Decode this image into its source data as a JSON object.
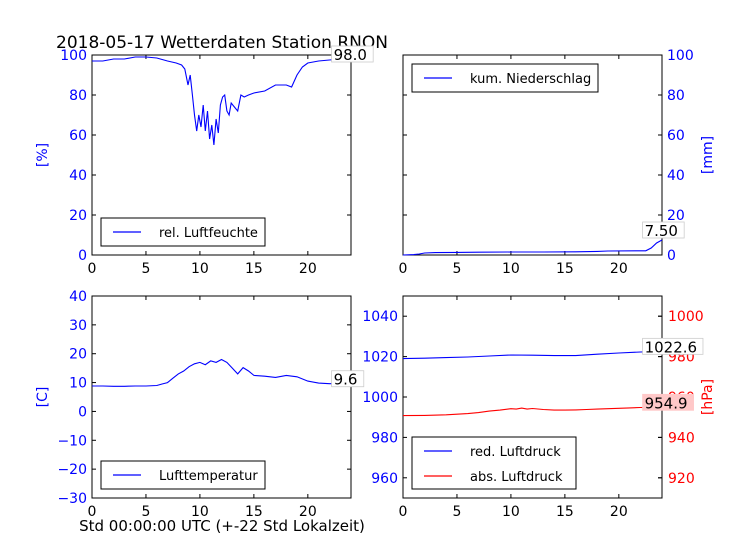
{
  "title": "2018-05-17 Wetterdaten Station RNON",
  "xlabel": "Std 00:00:00 UTC (+-22 Std Lokalzeit)",
  "colors": {
    "blue": "#0000ff",
    "red": "#ff0000",
    "frame": "#000000"
  },
  "chart_data": [
    {
      "type": "line",
      "xlim": [
        0,
        24
      ],
      "ylim": [
        0,
        100
      ],
      "ylabel": "[%]",
      "axis_side": "left",
      "xticks": [
        "0",
        "5",
        "10",
        "15",
        "20"
      ],
      "yticks": [
        "0",
        "20",
        "40",
        "60",
        "80",
        "100"
      ],
      "legend": "bottom-left",
      "series": [
        {
          "name": "rel. Luftfeuchte",
          "color": "#0000ff",
          "x": [
            0,
            1,
            2,
            3,
            4,
            5,
            6,
            7,
            7.8,
            8.3,
            8.6,
            8.9,
            9.1,
            9.3,
            9.5,
            9.7,
            9.9,
            10.1,
            10.3,
            10.5,
            10.7,
            10.9,
            11.1,
            11.3,
            11.5,
            11.7,
            11.9,
            12.1,
            12.3,
            12.5,
            12.7,
            12.9,
            13.2,
            13.5,
            13.8,
            14.1,
            14.5,
            15,
            16,
            17,
            18,
            18.5,
            19,
            19.5,
            20,
            21,
            22,
            23,
            24
          ],
          "y": [
            97,
            97,
            98,
            98,
            99,
            99,
            98.5,
            97,
            96,
            95,
            93,
            85,
            90,
            80,
            70,
            62,
            70,
            64,
            75,
            62,
            72,
            58,
            65,
            55,
            68,
            61,
            75,
            79,
            80,
            72,
            70,
            76,
            74,
            72,
            80,
            79,
            80,
            81,
            82,
            85,
            85,
            84,
            90,
            94,
            96,
            97,
            97.5,
            98,
            98
          ]
        }
      ],
      "annotation": {
        "text": "98.0",
        "x": 22.2,
        "y": 98
      }
    },
    {
      "type": "line",
      "xlim": [
        0,
        24
      ],
      "ylim": [
        0,
        100
      ],
      "ylabel": "[mm]",
      "axis_side": "right",
      "xticks": [
        "0",
        "5",
        "10",
        "15",
        "20"
      ],
      "yticks": [
        "0",
        "20",
        "40",
        "60",
        "80",
        "100"
      ],
      "legend": "top-left",
      "series": [
        {
          "name": "kum. Niederschlag",
          "color": "#0000ff",
          "x": [
            0,
            1,
            1.5,
            2,
            3,
            5,
            7,
            10,
            13,
            16,
            18,
            19,
            22.5,
            23,
            23.5,
            24
          ],
          "y": [
            0,
            0.2,
            0.5,
            1,
            1.2,
            1.3,
            1.4,
            1.5,
            1.5,
            1.6,
            1.8,
            2.0,
            2.1,
            3.5,
            6.0,
            7.5
          ]
        }
      ],
      "annotation": {
        "text": "7.50",
        "x": 22.2,
        "y": 10
      }
    },
    {
      "type": "line",
      "xlim": [
        0,
        24
      ],
      "ylim": [
        -30,
        40
      ],
      "ylabel": "[C]",
      "axis_side": "left",
      "xticks": [
        "0",
        "5",
        "10",
        "15",
        "20"
      ],
      "yticks": [
        "−30",
        "−20",
        "−10",
        "0",
        "10",
        "20",
        "30",
        "40"
      ],
      "legend": "bottom-left",
      "series": [
        {
          "name": "Lufttemperatur",
          "color": "#0000ff",
          "x": [
            0,
            1,
            2,
            3,
            4,
            5,
            6,
            6.5,
            7,
            7.5,
            8,
            8.5,
            9,
            9.5,
            10,
            10.5,
            11,
            11.5,
            12,
            12.5,
            13,
            13.5,
            14,
            14.5,
            15,
            16,
            17,
            18,
            19,
            20,
            21,
            22,
            23,
            24
          ],
          "y": [
            8.8,
            8.8,
            8.7,
            8.7,
            8.8,
            8.8,
            9.0,
            9.5,
            10,
            11.5,
            13,
            14,
            15.5,
            16.5,
            17,
            16.2,
            17.5,
            17,
            18,
            17,
            15,
            13,
            15.2,
            14,
            12.5,
            12.2,
            11.8,
            12.5,
            12.0,
            10.5,
            9.8,
            9.6,
            9.6,
            9.6
          ]
        }
      ],
      "annotation": {
        "text": "9.6",
        "x": 22.2,
        "y": 9.6
      }
    },
    {
      "type": "line",
      "xlim": [
        0,
        24
      ],
      "ylim": [
        950,
        1050
      ],
      "ylim_right": [
        910,
        1010
      ],
      "ylabel": "[hPa]",
      "axis_side": "right",
      "xticks": [
        "0",
        "5",
        "10",
        "15",
        "20"
      ],
      "yticks": [
        "960",
        "980",
        "1000",
        "1020",
        "1040"
      ],
      "yticks_right": [
        "920",
        "940",
        "960",
        "980",
        "1000"
      ],
      "legend": "bottom-left",
      "series": [
        {
          "name": "red. Luftdruck",
          "color": "#0000ff",
          "axis": "left",
          "x": [
            0,
            2,
            4,
            6,
            8,
            10,
            12,
            14,
            16,
            18,
            20,
            22,
            24
          ],
          "y": [
            1019,
            1019.2,
            1019.5,
            1019.8,
            1020.3,
            1020.8,
            1020.7,
            1020.5,
            1020.5,
            1021.2,
            1021.8,
            1022.3,
            1022.6
          ]
        },
        {
          "name": "abs. Luftdruck",
          "color": "#ff0000",
          "axis": "right",
          "x": [
            0,
            2,
            4,
            6,
            7,
            8,
            9,
            10,
            10.5,
            11,
            11.5,
            12,
            13,
            14,
            15,
            16,
            17,
            18,
            19,
            20,
            21,
            22,
            23,
            24
          ],
          "y": [
            950.8,
            950.9,
            951.2,
            951.8,
            952.3,
            953,
            953.5,
            954.2,
            954.0,
            954.5,
            954.0,
            954.3,
            953.8,
            953.5,
            953.5,
            953.6,
            953.8,
            954.0,
            954.2,
            954.4,
            954.6,
            954.8,
            954.9,
            954.9
          ]
        }
      ],
      "annotations": [
        {
          "text": "1022.6",
          "x": 22.2,
          "y": 1022.6,
          "axis": "left"
        },
        {
          "text": "954.9",
          "x": 22.2,
          "y": 954.9,
          "axis": "right",
          "highlight": true
        }
      ]
    }
  ]
}
